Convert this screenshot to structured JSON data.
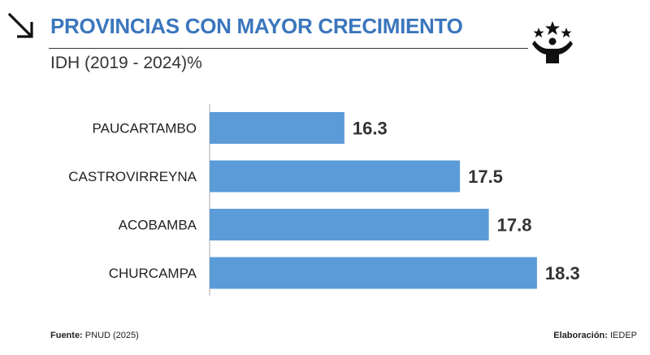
{
  "header": {
    "title": "PROVINCIAS CON MAYOR CRECIMIENTO",
    "subtitle": "IDH (2019 - 2024)%"
  },
  "footer": {
    "source_label": "Fuente:",
    "source_value": "PNUD (2025)",
    "credit_label": "Elaboración:",
    "credit_value": "IEDEP"
  },
  "colors": {
    "bar": "#5b9bd8",
    "title": "#3a76bd",
    "axis": "#c8c8c8"
  },
  "chart_data": {
    "type": "bar",
    "orientation": "horizontal",
    "title": "PROVINCIAS CON MAYOR CRECIMIENTO",
    "subtitle": "IDH (2019 - 2024)%",
    "categories": [
      "PAUCARTAMBO",
      "CASTROVIRREYNA",
      "ACOBAMBA",
      "CHURCAMPA"
    ],
    "values": [
      16.3,
      17.5,
      17.8,
      18.3
    ],
    "value_labels": [
      "16.3",
      "17.5",
      "17.8",
      "18.3"
    ],
    "xlabel": "",
    "ylabel": "",
    "xlim": [
      14.9,
      18.4
    ],
    "grid": false
  }
}
